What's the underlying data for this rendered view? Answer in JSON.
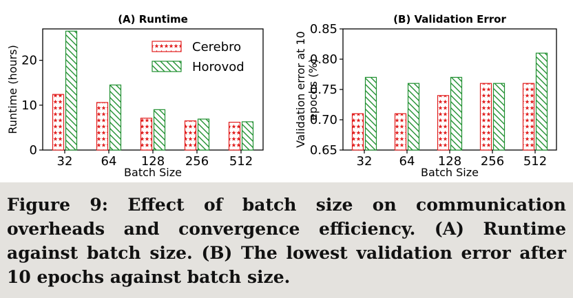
{
  "chart_data": [
    {
      "type": "bar",
      "title": "(A) Runtime",
      "xlabel": "Batch Size",
      "ylabel": "Runtime (hours)",
      "categories": [
        "32",
        "64",
        "128",
        "256",
        "512"
      ],
      "ylim": [
        0,
        27
      ],
      "yticks": [
        0,
        10,
        20
      ],
      "ytick_labels": [
        "0",
        "10",
        "20"
      ],
      "grid": false,
      "legend_position": "top-right",
      "series": [
        {
          "name": "Cerebro",
          "values": [
            12.4,
            10.6,
            7.1,
            6.5,
            6.2
          ],
          "color": "#e11d1d",
          "hatch": "stars"
        },
        {
          "name": "Horovod",
          "values": [
            26.5,
            14.5,
            9.0,
            6.9,
            6.3
          ],
          "color": "#1f8f2f",
          "hatch": "diagonal"
        }
      ]
    },
    {
      "type": "bar",
      "title": "(B) Validation Error",
      "xlabel": "Batch Size",
      "ylabel": "Validation error at 10 epochs (%)",
      "ylabel_lines": [
        "Validation error at 10",
        "epochs (%)"
      ],
      "categories": [
        "32",
        "64",
        "128",
        "256",
        "512"
      ],
      "ylim": [
        0.65,
        0.85
      ],
      "yticks": [
        0.65,
        0.7,
        0.75,
        0.8,
        0.85
      ],
      "ytick_labels": [
        "0.65",
        "0.70",
        "0.75",
        "0.80",
        "0.85"
      ],
      "grid": false,
      "series": [
        {
          "values": [
            0.71,
            0.71,
            0.74,
            0.76,
            0.76
          ],
          "color": "#e11d1d",
          "hatch": "stars"
        },
        {
          "values": [
            0.77,
            0.76,
            0.77,
            0.76,
            0.81
          ],
          "color": "#1f8f2f",
          "hatch": "diagonal"
        }
      ]
    }
  ],
  "caption": "Figure 9:  Effect of batch size on communication overheads and convergence efficiency. (A) Runtime against batch size. (B) The lowest validation error after 10 epochs against batch size."
}
